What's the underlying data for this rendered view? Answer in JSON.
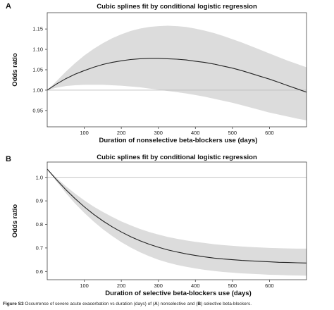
{
  "caption": {
    "label": "Figure S3",
    "text_1": " Occurrence of severe acute exacerbation vs duration (days) of (",
    "A": "A",
    "text_2": ") nonselective and (",
    "B": "B",
    "text_3": ") selective beta-blockers."
  },
  "chart_data": [
    {
      "panel_label": "A",
      "type": "line",
      "title": "Cubic splines fit by conditional logistic regression",
      "xlabel": "Duration of nonselective beta-blockers use (days)",
      "ylabel": "Odds ratio",
      "xlim": [
        0,
        700
      ],
      "ylim": [
        0.91,
        1.19
      ],
      "xticks": [
        100,
        200,
        300,
        400,
        500,
        600
      ],
      "yticks": [
        0.95,
        1.0,
        1.05,
        1.1,
        1.15
      ],
      "ytick_labels": [
        "0.95",
        "1.00",
        "1.05",
        "1.10",
        "1.15"
      ],
      "reference_line": 1.0,
      "grid": false,
      "x": [
        0,
        25,
        50,
        75,
        100,
        125,
        150,
        175,
        200,
        225,
        250,
        275,
        300,
        325,
        350,
        375,
        400,
        425,
        450,
        475,
        500,
        525,
        550,
        575,
        600,
        625,
        650,
        675,
        700
      ],
      "series": [
        {
          "role": "estimate",
          "values": [
            1.0,
            1.015,
            1.028,
            1.039,
            1.048,
            1.056,
            1.063,
            1.068,
            1.072,
            1.075,
            1.077,
            1.078,
            1.078,
            1.077,
            1.076,
            1.074,
            1.071,
            1.068,
            1.064,
            1.059,
            1.054,
            1.048,
            1.041,
            1.034,
            1.027,
            1.019,
            1.011,
            1.003,
            0.995
          ]
        },
        {
          "role": "upper",
          "values": [
            1.0,
            1.022,
            1.045,
            1.066,
            1.085,
            1.101,
            1.115,
            1.127,
            1.137,
            1.145,
            1.151,
            1.155,
            1.157,
            1.158,
            1.157,
            1.155,
            1.151,
            1.146,
            1.14,
            1.133,
            1.125,
            1.117,
            1.108,
            1.099,
            1.09,
            1.081,
            1.072,
            1.064,
            1.056
          ]
        },
        {
          "role": "lower",
          "values": [
            1.0,
            1.006,
            1.01,
            1.012,
            1.013,
            1.013,
            1.013,
            1.012,
            1.011,
            1.009,
            1.007,
            1.004,
            1.001,
            0.998,
            0.995,
            0.992,
            0.988,
            0.984,
            0.979,
            0.974,
            0.969,
            0.963,
            0.957,
            0.951,
            0.945,
            0.94,
            0.935,
            0.93,
            0.926
          ]
        }
      ],
      "colors": {
        "line": "#222222",
        "band": "#dcdcdc",
        "reference": "#bdbdbd"
      }
    },
    {
      "panel_label": "B",
      "type": "line",
      "title": "Cubic splines fit by conditional logistic regression",
      "xlabel": "Duration of selective beta-blockers use (days)",
      "ylabel": "Odds ratio",
      "xlim": [
        0,
        700
      ],
      "ylim": [
        0.565,
        1.065
      ],
      "xticks": [
        100,
        200,
        300,
        400,
        500,
        600
      ],
      "yticks": [
        0.6,
        0.7,
        0.8,
        0.9,
        1.0
      ],
      "ytick_labels": [
        "0.6",
        "0.7",
        "0.8",
        "0.9",
        "1.0"
      ],
      "reference_line": 1.0,
      "grid": false,
      "x": [
        0,
        25,
        50,
        75,
        100,
        125,
        150,
        175,
        200,
        225,
        250,
        275,
        300,
        325,
        350,
        375,
        400,
        425,
        450,
        475,
        500,
        525,
        550,
        575,
        600,
        625,
        650,
        675,
        700
      ],
      "series": [
        {
          "role": "estimate",
          "values": [
            1.035,
            0.99,
            0.948,
            0.91,
            0.875,
            0.843,
            0.815,
            0.79,
            0.768,
            0.748,
            0.731,
            0.716,
            0.703,
            0.692,
            0.683,
            0.675,
            0.668,
            0.662,
            0.657,
            0.653,
            0.65,
            0.647,
            0.645,
            0.643,
            0.641,
            0.639,
            0.638,
            0.637,
            0.636
          ]
        },
        {
          "role": "upper",
          "values": [
            1.035,
            0.998,
            0.963,
            0.931,
            0.902,
            0.876,
            0.853,
            0.832,
            0.813,
            0.796,
            0.781,
            0.768,
            0.757,
            0.747,
            0.739,
            0.732,
            0.726,
            0.721,
            0.716,
            0.712,
            0.709,
            0.706,
            0.704,
            0.702,
            0.7,
            0.699,
            0.698,
            0.697,
            0.697
          ]
        },
        {
          "role": "lower",
          "values": [
            1.035,
            0.983,
            0.934,
            0.889,
            0.849,
            0.813,
            0.78,
            0.751,
            0.725,
            0.702,
            0.682,
            0.665,
            0.65,
            0.638,
            0.628,
            0.62,
            0.613,
            0.607,
            0.602,
            0.598,
            0.595,
            0.592,
            0.59,
            0.588,
            0.586,
            0.585,
            0.584,
            0.583,
            0.582
          ]
        }
      ],
      "colors": {
        "line": "#222222",
        "band": "#dcdcdc",
        "reference": "#bdbdbd"
      }
    }
  ]
}
